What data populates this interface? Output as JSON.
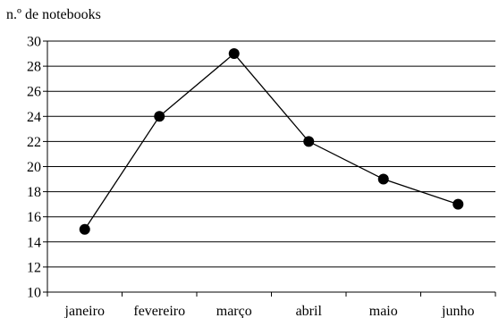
{
  "chart_data": {
    "type": "line",
    "ylabel": "n.º de notebooks",
    "categories": [
      "janeiro",
      "fevereiro",
      "março",
      "abril",
      "maio",
      "junho"
    ],
    "values": [
      15,
      24,
      29,
      22,
      19,
      17
    ],
    "ylim": [
      10,
      30
    ],
    "yticks": [
      10,
      12,
      14,
      16,
      18,
      20,
      22,
      24,
      26,
      28,
      30
    ],
    "grid": "horizontal",
    "line_color": "#000000",
    "marker": "filled-circle"
  }
}
